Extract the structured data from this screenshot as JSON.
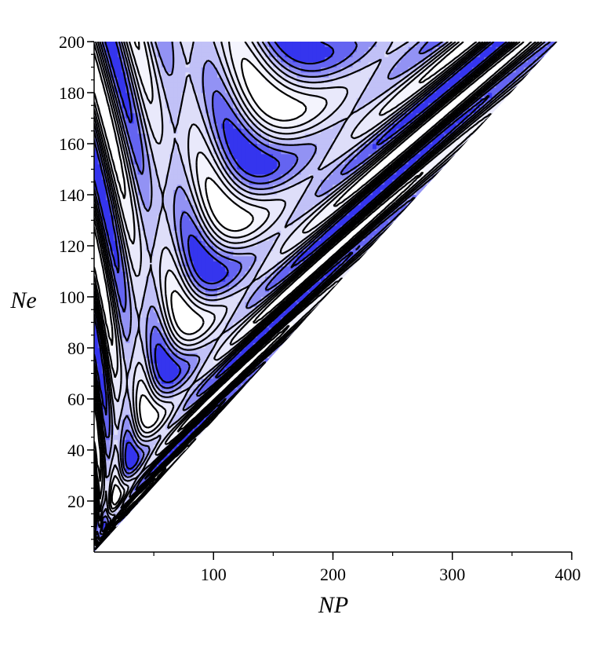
{
  "chart_data": {
    "type": "heatmap",
    "subtype": "filled-contour",
    "title": "",
    "xlabel": "NP",
    "ylabel": "Ne",
    "xlim": [
      0,
      400
    ],
    "ylim": [
      0,
      200
    ],
    "x_ticks": [
      100,
      200,
      300,
      400
    ],
    "y_ticks": [
      20,
      40,
      60,
      80,
      100,
      120,
      140,
      160,
      180,
      200
    ],
    "x_minor_tick_step": 50,
    "y_minor_tick_step": 5,
    "domain": "triangular region where NP <= 2*Ne",
    "grid": false,
    "legend": "none",
    "colormap": {
      "low": "#ffffff",
      "mid": "#d8d8f8",
      "high": "#3535ee",
      "contour_line": "#000000"
    },
    "contour_levels": 8
  }
}
